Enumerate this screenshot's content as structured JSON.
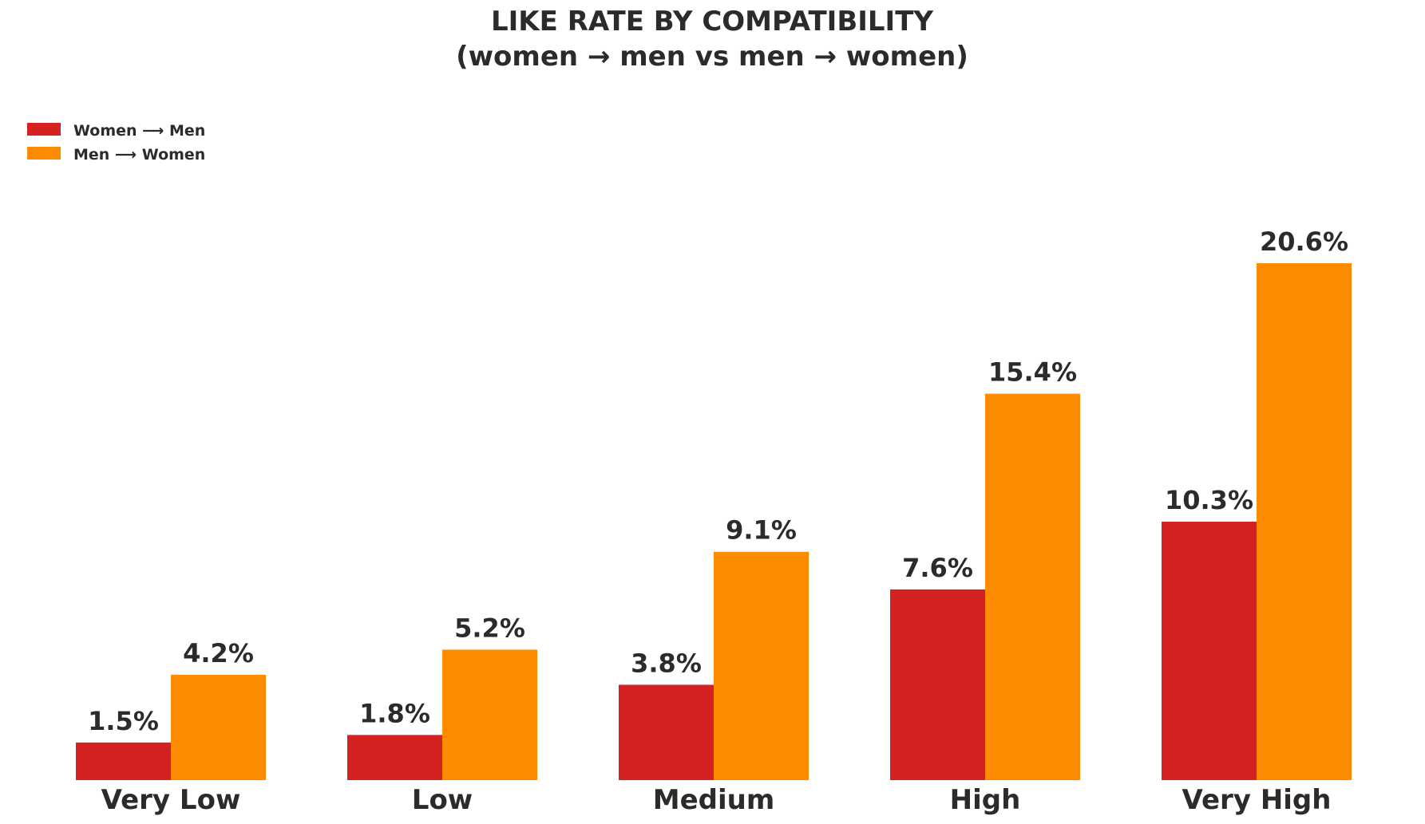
{
  "chart_data": {
    "type": "bar",
    "title": "LIKE RATE BY COMPATIBILITY",
    "subtitle": "(women → men  vs  men → women)",
    "xlabel": "",
    "ylabel": "",
    "ylim": [
      0,
      22
    ],
    "grid": false,
    "legend_position": "top-left",
    "categories": [
      "Very Low",
      "Low",
      "Medium",
      "High",
      "Very High"
    ],
    "series": [
      {
        "name": "Women ⟶ Men",
        "color": "#d42222",
        "values": [
          1.5,
          1.8,
          3.8,
          7.6,
          10.3
        ],
        "labels": [
          "1.5%",
          "1.8%",
          "3.8%",
          "7.6%",
          "10.3%"
        ]
      },
      {
        "name": "Men ⟶ Women",
        "color": "#ff8c00",
        "values": [
          4.2,
          5.2,
          9.1,
          15.4,
          20.6
        ],
        "labels": [
          "4.2%",
          "5.2%",
          "9.1%",
          "15.4%",
          "20.6%"
        ]
      }
    ]
  }
}
